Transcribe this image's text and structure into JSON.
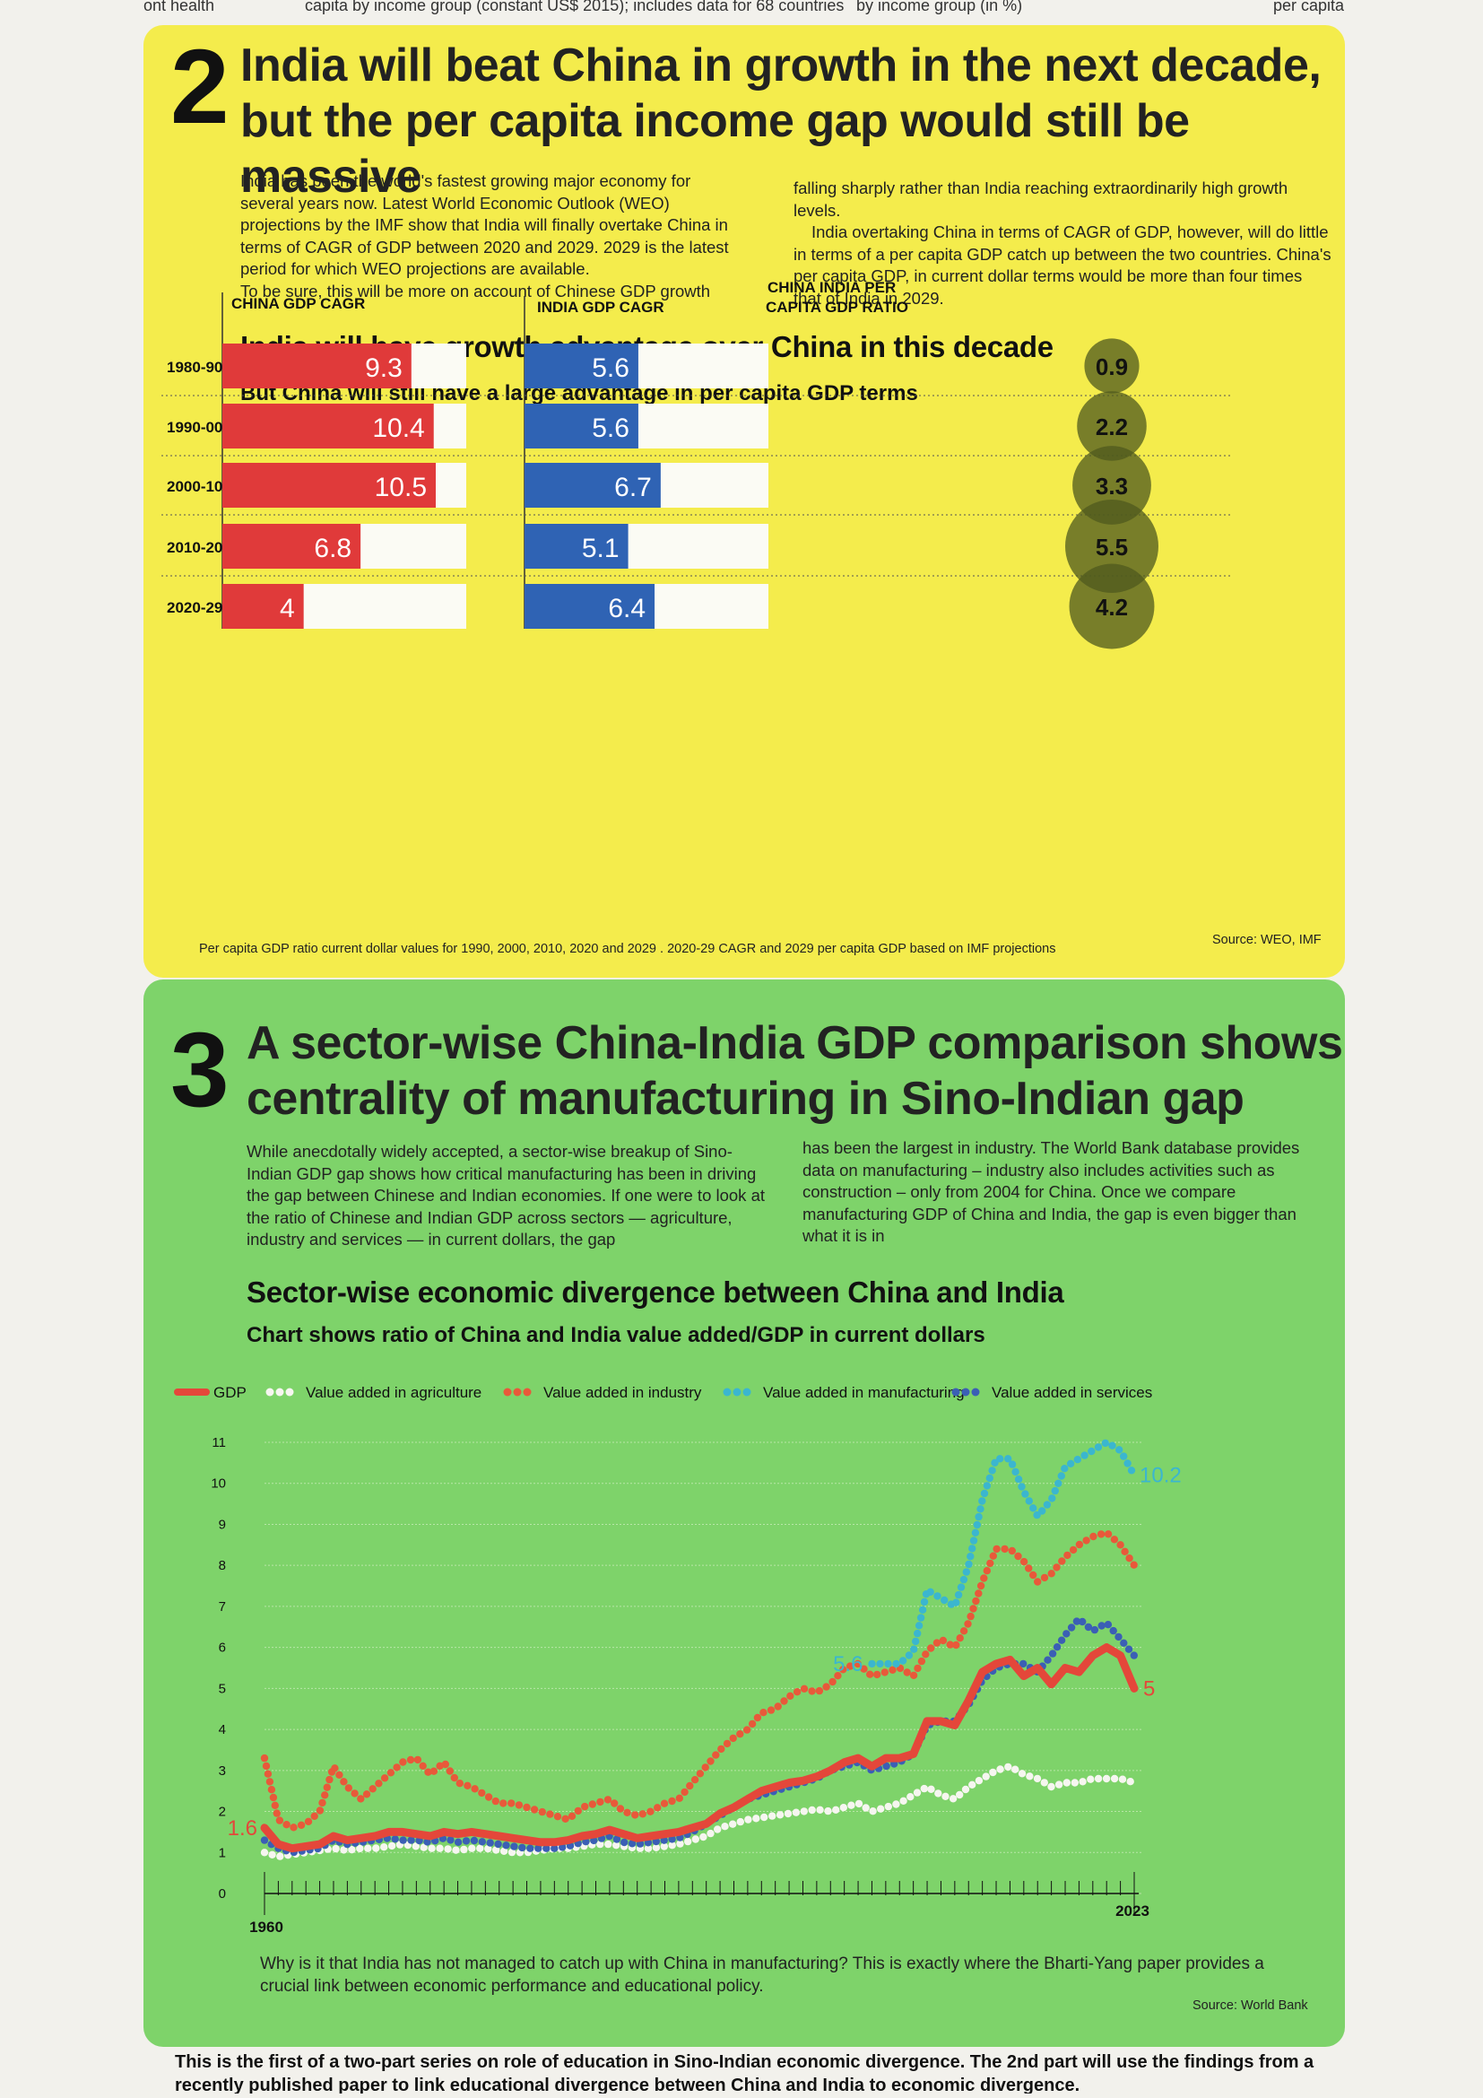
{
  "clipped_top": [
    "ont health",
    "capita by income group (constant US$ 2015); includes data for 68 countries",
    "by income group (in %)",
    "per capita"
  ],
  "section2": {
    "number": "2",
    "headline_line1": "India will beat China in growth in the next decade,",
    "headline_line2": "but the per capita income gap would still be massive",
    "body_left": "India has been the world's fastest growing major economy for several years now. Latest World Economic Outlook (WEO) projections by the IMF show that India will finally overtake China in terms of CAGR of GDP between 2020 and 2029. 2029 is the latest period for which WEO projections are available.",
    "body_left_2": "To be sure, this will be more on account of Chinese GDP growth",
    "body_right_1": "falling sharply rather than India reaching extraordinarily high growth levels.",
    "body_right_2": "India overtaking China in terms of CAGR of GDP, however, will do little in terms of a per capita GDP catch up between the two countries. China's per capita GDP, in current dollar terms would be more than four times that of India in 2029.",
    "chart_title": "India will have growth advantage over China in this decade",
    "chart_subtitle": "But China will still have a large advantage in per capita GDP terms",
    "footnote": "Per capita GDP ratio current dollar values for 1990, 2000, 2010, 2020 and 2029 . 2020-29 CAGR and 2029 per capita GDP based on IMF projections",
    "source": "Source: WEO, IMF",
    "colors": {
      "china": "#e03a3a",
      "india": "#2f63b4",
      "circle": "#4f5a1e",
      "track": "#fbfbf4",
      "background": "#f4ec4c"
    }
  },
  "section3": {
    "number": "3",
    "headline_line1": "A sector-wise China-India GDP comparison shows",
    "headline_line2": "centrality of manufacturing in Sino-Indian gap",
    "body_left": "While anecdotally widely accepted, a sector-wise breakup of Sino-Indian GDP gap shows how critical manufacturing has been in driving the gap between Chinese and Indian economies. If one were to look at the ratio of Chinese and Indian GDP across sectors — agriculture, industry and services — in current dollars, the gap",
    "body_right": "has been the largest in industry. The World Bank database provides data on manufacturing – industry also includes activities such as construction – only from 2004 for China. Once we compare manufacturing GDP of China and India, the gap is even bigger than what it is in",
    "chart_title": "Sector-wise economic divergence between China and India",
    "chart_subtitle": "Chart shows ratio of China and India value added/GDP in current dollars",
    "question": "Why is it that India has not managed to catch up with China in manufacturing? This is exactly where the Bharti-Yang paper provides a crucial link between economic performance and educational policy.",
    "source": "Source: World Bank",
    "colors": {
      "gdp": "#e4473a",
      "agriculture": "#f6f6f0",
      "industry": "#e8593a",
      "manufacturing": "#3bb6cf",
      "services": "#3b5fb5",
      "background": "#7ed36a"
    }
  },
  "bottom_text": "This is the first of a two-part series on role of education in Sino-Indian economic divergence. The 2nd part will use the findings from a recently published paper to link educational divergence between China and India to economic divergence.",
  "chart_data": [
    {
      "type": "bar",
      "title": "India will have growth advantage over China in this decade",
      "subtitle": "But China will still have a large advantage in per capita GDP terms",
      "categories": [
        "1980-90",
        "1990-00",
        "2000-10",
        "2010-20",
        "2020-29"
      ],
      "xlim": [
        0,
        12
      ],
      "series": [
        {
          "name": "CHINA GDP CAGR",
          "values": [
            9.3,
            10.4,
            10.5,
            6.8,
            4
          ]
        },
        {
          "name": "INDIA GDP CAGR",
          "values": [
            5.6,
            5.6,
            6.7,
            5.1,
            6.4
          ]
        }
      ],
      "ratio_label": "CHINA INDIA PER CAPITA GDP RATIO",
      "ratio_values": [
        0.9,
        2.2,
        3.3,
        5.5,
        4.2
      ]
    },
    {
      "type": "line",
      "title": "Sector-wise economic divergence between China and India",
      "subtitle": "Chart shows ratio of China and India value added/GDP in current dollars",
      "x_start_label": "1960",
      "x_end_label": "2023",
      "xlim": [
        1960,
        2023
      ],
      "ylim": [
        0,
        11
      ],
      "yticks": [
        0,
        1,
        2,
        3,
        4,
        5,
        6,
        7,
        8,
        9,
        10,
        11
      ],
      "annotations": [
        {
          "series": "GDP",
          "x": 1960,
          "y": 1.6,
          "text": "1.6"
        },
        {
          "series": "GDP",
          "x": 2023,
          "y": 5,
          "text": "5"
        },
        {
          "series": "Value added in manufacturing",
          "x": 2004,
          "y": 5.6,
          "text": "5.6"
        },
        {
          "series": "Value added in manufacturing",
          "x": 2023,
          "y": 10.2,
          "text": "10.2"
        }
      ],
      "series": [
        {
          "name": "GDP",
          "style": "solid",
          "x": [
            1960,
            1961,
            1962,
            1963,
            1964,
            1965,
            1966,
            1967,
            1968,
            1969,
            1970,
            1971,
            1972,
            1973,
            1974,
            1975,
            1976,
            1977,
            1978,
            1979,
            1980,
            1981,
            1982,
            1983,
            1984,
            1985,
            1986,
            1987,
            1988,
            1989,
            1990,
            1991,
            1992,
            1993,
            1994,
            1995,
            1996,
            1997,
            1998,
            1999,
            2000,
            2001,
            2002,
            2003,
            2004,
            2005,
            2006,
            2007,
            2008,
            2009,
            2010,
            2011,
            2012,
            2013,
            2014,
            2015,
            2016,
            2017,
            2018,
            2019,
            2020,
            2021,
            2022,
            2023
          ],
          "y": [
            1.6,
            1.2,
            1.1,
            1.15,
            1.2,
            1.4,
            1.3,
            1.35,
            1.4,
            1.5,
            1.5,
            1.45,
            1.4,
            1.5,
            1.45,
            1.5,
            1.45,
            1.4,
            1.35,
            1.3,
            1.25,
            1.25,
            1.3,
            1.4,
            1.45,
            1.55,
            1.45,
            1.35,
            1.4,
            1.45,
            1.5,
            1.6,
            1.7,
            1.95,
            2.1,
            2.3,
            2.5,
            2.6,
            2.7,
            2.75,
            2.85,
            3.0,
            3.2,
            3.3,
            3.1,
            3.3,
            3.3,
            3.4,
            4.2,
            4.2,
            4.1,
            4.7,
            5.4,
            5.6,
            5.7,
            5.3,
            5.5,
            5.1,
            5.5,
            5.4,
            5.8,
            6.0,
            5.8,
            5.0
          ]
        },
        {
          "name": "Value added in agriculture",
          "style": "dotted",
          "x": [
            1960,
            1961,
            1962,
            1963,
            1964,
            1965,
            1966,
            1967,
            1968,
            1969,
            1970,
            1971,
            1972,
            1973,
            1974,
            1975,
            1976,
            1977,
            1978,
            1979,
            1980,
            1981,
            1982,
            1983,
            1984,
            1985,
            1986,
            1987,
            1988,
            1989,
            1990,
            1991,
            1992,
            1993,
            1994,
            1995,
            1996,
            1997,
            1998,
            1999,
            2000,
            2001,
            2002,
            2003,
            2004,
            2005,
            2006,
            2007,
            2008,
            2009,
            2010,
            2011,
            2012,
            2013,
            2014,
            2015,
            2016,
            2017,
            2018,
            2019,
            2020,
            2021,
            2022,
            2023
          ],
          "y": [
            1.0,
            0.9,
            0.95,
            1.0,
            1.05,
            1.1,
            1.05,
            1.1,
            1.1,
            1.15,
            1.2,
            1.15,
            1.1,
            1.1,
            1.05,
            1.1,
            1.1,
            1.05,
            1.0,
            1.0,
            1.05,
            1.1,
            1.1,
            1.15,
            1.2,
            1.2,
            1.15,
            1.1,
            1.1,
            1.15,
            1.2,
            1.3,
            1.4,
            1.6,
            1.7,
            1.8,
            1.85,
            1.9,
            1.95,
            2.0,
            2.05,
            2.0,
            2.1,
            2.2,
            2.0,
            2.1,
            2.2,
            2.4,
            2.6,
            2.4,
            2.3,
            2.6,
            2.8,
            3.0,
            3.1,
            2.9,
            2.8,
            2.6,
            2.7,
            2.7,
            2.8,
            2.8,
            2.8,
            2.7
          ]
        },
        {
          "name": "Value added in industry",
          "style": "dotted",
          "x": [
            1960,
            1961,
            1962,
            1963,
            1964,
            1965,
            1966,
            1967,
            1968,
            1969,
            1970,
            1971,
            1972,
            1973,
            1974,
            1975,
            1976,
            1977,
            1978,
            1979,
            1980,
            1981,
            1982,
            1983,
            1984,
            1985,
            1986,
            1987,
            1988,
            1989,
            1990,
            1991,
            1992,
            1993,
            1994,
            1995,
            1996,
            1997,
            1998,
            1999,
            2000,
            2001,
            2002,
            2003,
            2004,
            2005,
            2006,
            2007,
            2008,
            2009,
            2010,
            2011,
            2012,
            2013,
            2014,
            2015,
            2016,
            2017,
            2018,
            2019,
            2020,
            2021,
            2022,
            2023
          ],
          "y": [
            3.3,
            1.8,
            1.6,
            1.7,
            2.0,
            3.1,
            2.6,
            2.3,
            2.6,
            2.9,
            3.2,
            3.3,
            2.9,
            3.2,
            2.7,
            2.6,
            2.4,
            2.2,
            2.2,
            2.1,
            2.0,
            1.9,
            1.8,
            2.1,
            2.2,
            2.3,
            2.0,
            1.9,
            2.0,
            2.2,
            2.3,
            2.7,
            3.1,
            3.5,
            3.8,
            4.0,
            4.4,
            4.5,
            4.8,
            5.0,
            4.9,
            5.1,
            5.5,
            5.6,
            5.3,
            5.4,
            5.5,
            5.3,
            5.9,
            6.2,
            6.0,
            6.6,
            7.6,
            8.4,
            8.4,
            8.1,
            7.6,
            7.8,
            8.2,
            8.5,
            8.7,
            8.8,
            8.5,
            8.0
          ]
        },
        {
          "name": "Value added in manufacturing",
          "style": "dotted",
          "x": [
            2004,
            2005,
            2006,
            2007,
            2008,
            2009,
            2010,
            2011,
            2012,
            2013,
            2014,
            2015,
            2016,
            2017,
            2018,
            2019,
            2020,
            2021,
            2022,
            2023
          ],
          "y": [
            5.6,
            5.6,
            5.6,
            5.9,
            7.4,
            7.2,
            7.0,
            8.0,
            9.6,
            10.6,
            10.6,
            9.8,
            9.2,
            9.6,
            10.4,
            10.6,
            10.8,
            11.0,
            10.8,
            10.2
          ]
        },
        {
          "name": "Value added in services",
          "style": "dotted",
          "x": [
            1960,
            1961,
            1962,
            1963,
            1964,
            1965,
            1966,
            1967,
            1968,
            1969,
            1970,
            1971,
            1972,
            1973,
            1974,
            1975,
            1976,
            1977,
            1978,
            1979,
            1980,
            1981,
            1982,
            1983,
            1984,
            1985,
            1986,
            1987,
            1988,
            1989,
            1990,
            1991,
            1992,
            1993,
            1994,
            1995,
            1996,
            1997,
            1998,
            1999,
            2000,
            2001,
            2002,
            2003,
            2004,
            2005,
            2006,
            2007,
            2008,
            2009,
            2010,
            2011,
            2012,
            2013,
            2014,
            2015,
            2016,
            2017,
            2018,
            2019,
            2020,
            2021,
            2022,
            2023
          ],
          "y": [
            1.3,
            1.1,
            1.0,
            1.05,
            1.1,
            1.3,
            1.2,
            1.25,
            1.3,
            1.35,
            1.3,
            1.3,
            1.25,
            1.35,
            1.25,
            1.3,
            1.25,
            1.2,
            1.15,
            1.1,
            1.1,
            1.1,
            1.15,
            1.25,
            1.3,
            1.4,
            1.25,
            1.2,
            1.25,
            1.3,
            1.35,
            1.5,
            1.7,
            1.9,
            2.1,
            2.3,
            2.4,
            2.5,
            2.6,
            2.7,
            2.8,
            3.0,
            3.1,
            3.2,
            3.0,
            3.1,
            3.2,
            3.4,
            4.1,
            4.2,
            4.2,
            4.6,
            5.2,
            5.5,
            5.6,
            5.6,
            5.4,
            5.8,
            6.3,
            6.7,
            6.4,
            6.6,
            6.2,
            5.8
          ]
        }
      ]
    }
  ]
}
